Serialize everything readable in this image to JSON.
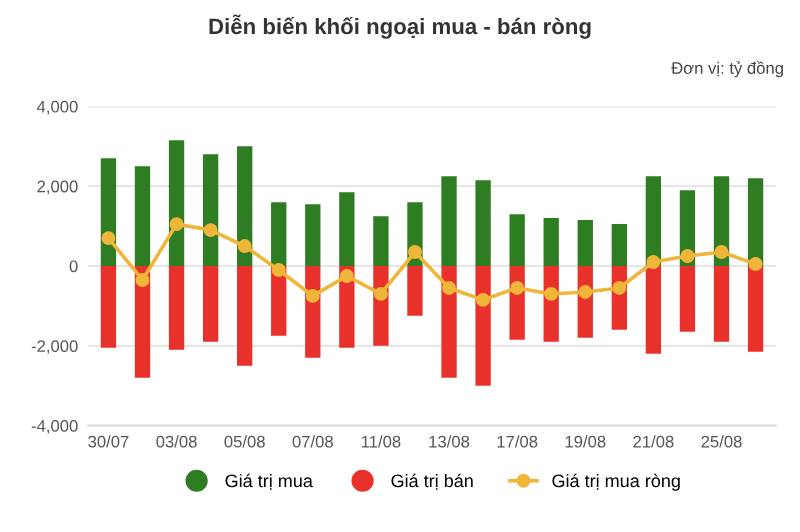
{
  "chart_data": {
    "type": "bar",
    "title": "Diễn biến khối ngoại mua - bán ròng",
    "annotations": [
      "Đơn vị: tỷ đồng"
    ],
    "categories": [
      "30/07",
      null,
      "03/08",
      null,
      "05/08",
      null,
      "07/08",
      null,
      "11/08",
      null,
      "13/08",
      null,
      "17/08",
      null,
      "19/08",
      null,
      "21/08",
      null,
      "25/08",
      null
    ],
    "series": [
      {
        "name": "Giá trị mua",
        "color": "#2e7d23",
        "values": [
          2700,
          2500,
          3150,
          2800,
          3000,
          1600,
          1550,
          1850,
          1250,
          1600,
          2250,
          2150,
          1300,
          1200,
          1150,
          1050,
          2250,
          1900,
          2250,
          2200
        ]
      },
      {
        "name": "Giá trị bán",
        "color": "#e8312a",
        "values": [
          -2050,
          -2800,
          -2100,
          -1900,
          -2500,
          -1750,
          -2300,
          -2050,
          -2000,
          -1250,
          -2800,
          -3000,
          -1850,
          -1900,
          -1800,
          -1600,
          -2200,
          -1650,
          -1900,
          -2150
        ]
      },
      {
        "name": "Giá trị mua ròng",
        "type": "line",
        "color": "#f0b63a",
        "marker": "circle",
        "values": [
          700,
          -350,
          1050,
          900,
          500,
          -100,
          -750,
          -250,
          -700,
          350,
          -550,
          -850,
          -550,
          -700,
          -650,
          -550,
          100,
          250,
          350,
          50
        ]
      }
    ],
    "stacked": true,
    "ylim": [
      -4000,
      4000
    ],
    "yticks": [
      {
        "value": -4000,
        "label": "-4,000"
      },
      {
        "value": -2000,
        "label": "-2,000"
      },
      0,
      {
        "value": 2000,
        "label": "2,000"
      },
      {
        "value": 4000,
        "label": "4,000"
      }
    ],
    "grid": "y",
    "legend": "bottom"
  }
}
